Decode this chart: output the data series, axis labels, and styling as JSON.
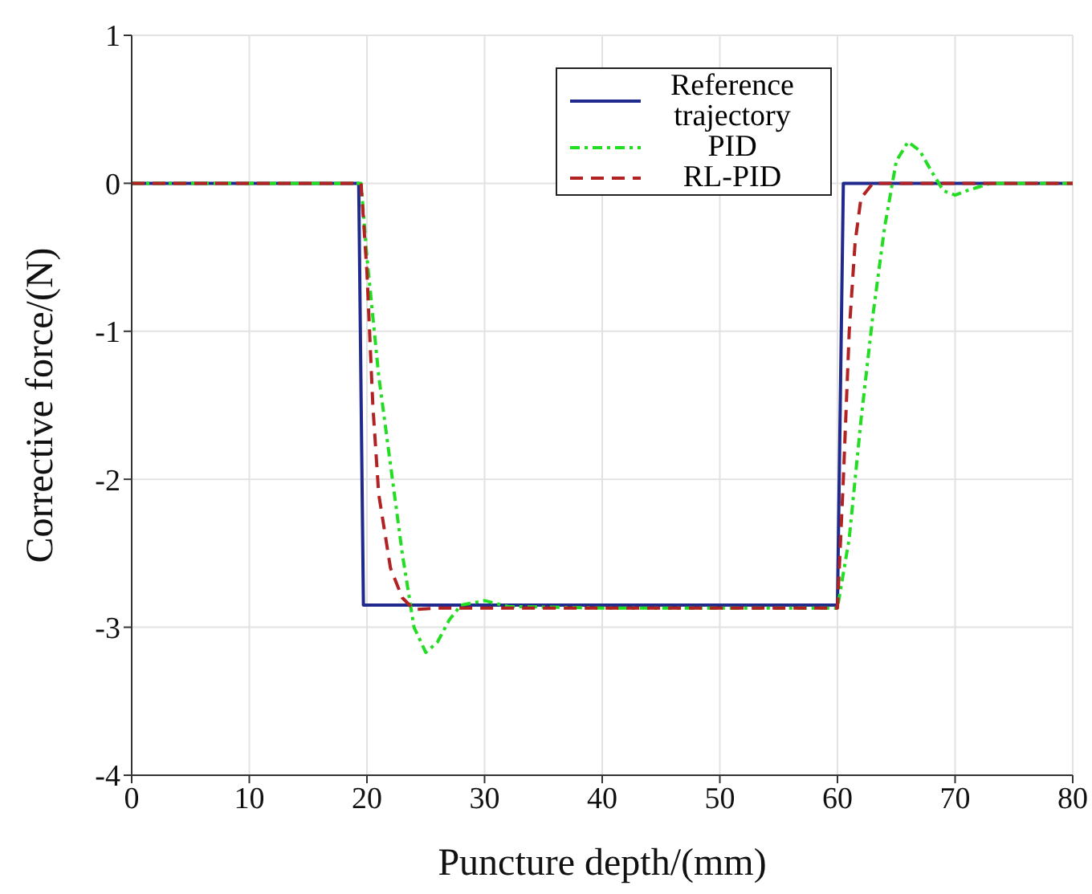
{
  "chart_data": {
    "type": "line",
    "xlabel": "Puncture depth/(mm)",
    "ylabel": "Corrective force/(N)",
    "xlim": [
      0,
      80
    ],
    "xticks": [
      0,
      10,
      20,
      30,
      40,
      50,
      60,
      70,
      80
    ],
    "ylim": [
      -4,
      1
    ],
    "yticks": [
      -4,
      -3,
      -2,
      -1,
      0,
      1
    ],
    "grid": true,
    "legend": "top right",
    "series": [
      {
        "name": "Reference trajectory",
        "color": "#1f2a8c",
        "line_style": "solid",
        "x": [
          0,
          19.3,
          19.7,
          60,
          60.5,
          80
        ],
        "values": [
          0,
          0,
          -2.85,
          -2.85,
          0,
          0
        ]
      },
      {
        "name": "PID",
        "color": "#22dd22",
        "line_style": "dotted",
        "x": [
          0,
          10,
          19.5,
          20,
          20.5,
          21,
          22,
          23,
          24,
          25,
          26,
          27,
          28,
          30,
          32,
          40,
          50,
          60,
          61,
          62,
          63,
          64,
          65,
          66,
          67,
          68,
          69,
          70,
          71,
          73,
          80
        ],
        "values": [
          0,
          0,
          0,
          -0.5,
          -0.9,
          -1.3,
          -1.9,
          -2.5,
          -3.0,
          -3.17,
          -3.1,
          -2.95,
          -2.85,
          -2.82,
          -2.86,
          -2.87,
          -2.87,
          -2.87,
          -2.4,
          -1.6,
          -0.9,
          -0.3,
          0.15,
          0.28,
          0.22,
          0.08,
          -0.05,
          -0.08,
          -0.05,
          0,
          0
        ]
      },
      {
        "name": "RL-PID",
        "color": "#b22222",
        "line_style": "dashed",
        "x": [
          0,
          10,
          19.5,
          20,
          20.5,
          21,
          22,
          23,
          24,
          26,
          40,
          50,
          60,
          60.5,
          61,
          61.5,
          62,
          63,
          70,
          80
        ],
        "values": [
          0,
          0,
          0,
          -0.6,
          -1.5,
          -2.1,
          -2.6,
          -2.8,
          -2.88,
          -2.87,
          -2.87,
          -2.87,
          -2.87,
          -2.0,
          -1.0,
          -0.4,
          -0.1,
          0,
          0,
          0
        ]
      }
    ]
  }
}
